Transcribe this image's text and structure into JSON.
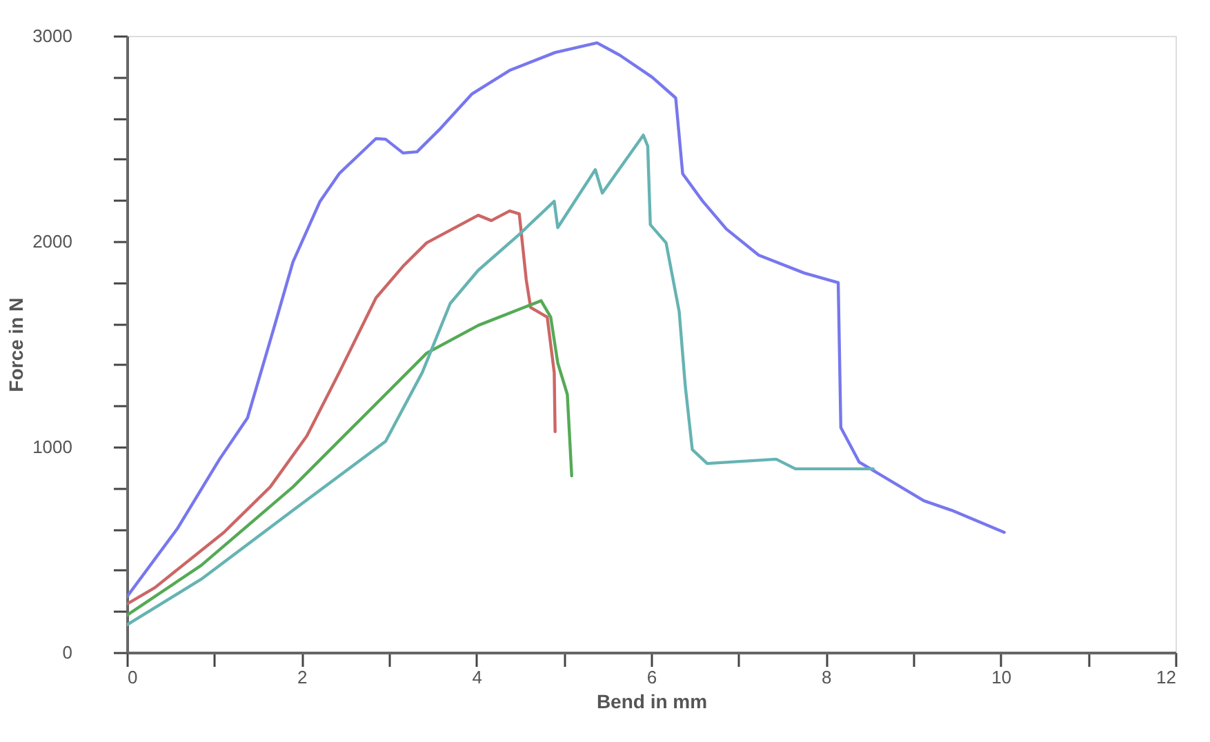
{
  "chart_data": {
    "type": "line",
    "xlabel": "Bend in mm",
    "ylabel": "Force in N",
    "xlim": [
      0,
      12
    ],
    "ylim": [
      0,
      3000
    ],
    "xticks": [
      0,
      {
        "value": 1,
        "label": null
      },
      2,
      {
        "value": 3,
        "label": null
      },
      4,
      {
        "value": 5,
        "label": null
      },
      6,
      {
        "value": 7,
        "label": null
      },
      8,
      {
        "value": 9,
        "label": null
      },
      10,
      {
        "value": 11,
        "label": null
      },
      12
    ],
    "yticks": [
      0,
      {
        "value": 200,
        "label": null
      },
      {
        "value": 400,
        "label": null
      },
      {
        "value": 600,
        "label": null
      },
      {
        "value": 800,
        "label": null
      },
      1000,
      {
        "value": 1200,
        "label": null
      },
      {
        "value": 1400,
        "label": null
      },
      {
        "value": 1600,
        "label": null
      },
      {
        "value": 1800,
        "label": null
      },
      2000,
      {
        "value": 2200,
        "label": null
      },
      {
        "value": 2400,
        "label": null
      },
      {
        "value": 2600,
        "label": null
      },
      {
        "value": 2800,
        "label": null
      },
      3000
    ],
    "grid": false,
    "legend": false,
    "marker": "none",
    "line_style": "solid",
    "series": [
      {
        "color": "#7777ee",
        "x": [
          0,
          0.58,
          1.06,
          1.38,
          1.69,
          1.9,
          2.21,
          2.43,
          2.85,
          2.96,
          3.16,
          3.32,
          3.59,
          3.95,
          4.38,
          4.9,
          5.38,
          5.64,
          6.01,
          6.28,
          6.36,
          6.59,
          6.86,
          7.23,
          7.75,
          8.14,
          8.17,
          8.38,
          9.12,
          9.44,
          10.04
        ],
        "values": [
          270,
          604,
          940,
          1141,
          1590,
          1900,
          2195,
          2330,
          2500,
          2497,
          2430,
          2436,
          2550,
          2718,
          2832,
          2919,
          2966,
          2906,
          2799,
          2698,
          2329,
          2195,
          2060,
          1933,
          1846,
          1799,
          1094,
          926,
          738,
          691,
          584
        ]
      },
      {
        "color": "#cc6666",
        "x": [
          0,
          0.32,
          1.11,
          1.64,
          2.06,
          2.43,
          2.85,
          3.16,
          3.43,
          4.02,
          4.17,
          4.38,
          4.49,
          4.57,
          4.62,
          4.81,
          4.89,
          4.9
        ],
        "values": [
          235,
          315,
          584,
          805,
          1054,
          1362,
          1725,
          1879,
          1993,
          2127,
          2101,
          2148,
          2134,
          1812,
          1678,
          1631,
          1362,
          1074
        ]
      },
      {
        "color": "#55aa55",
        "x": [
          0,
          0.85,
          1.9,
          2.69,
          3.43,
          4.02,
          4.54,
          4.74,
          4.85,
          4.93,
          5.04,
          5.09
        ],
        "values": [
          181,
          423,
          805,
          1141,
          1456,
          1591,
          1678,
          1711,
          1631,
          1409,
          1255,
          859
        ]
      },
      {
        "color": "#66b3b3",
        "x": [
          0,
          0.85,
          1.9,
          2.96,
          3.38,
          3.7,
          4.02,
          4.49,
          4.89,
          4.93,
          5.36,
          5.44,
          5.91,
          5.96,
          5.99,
          6.17,
          6.32,
          6.39,
          6.47,
          6.64,
          7.43,
          7.65,
          8.54
        ],
        "values": [
          134,
          356,
          691,
          1027,
          1362,
          1698,
          1859,
          2034,
          2195,
          2067,
          2349,
          2235,
          2517,
          2463,
          2081,
          1993,
          1658,
          1295,
          987,
          919,
          940,
          893,
          893
        ]
      }
    ]
  }
}
